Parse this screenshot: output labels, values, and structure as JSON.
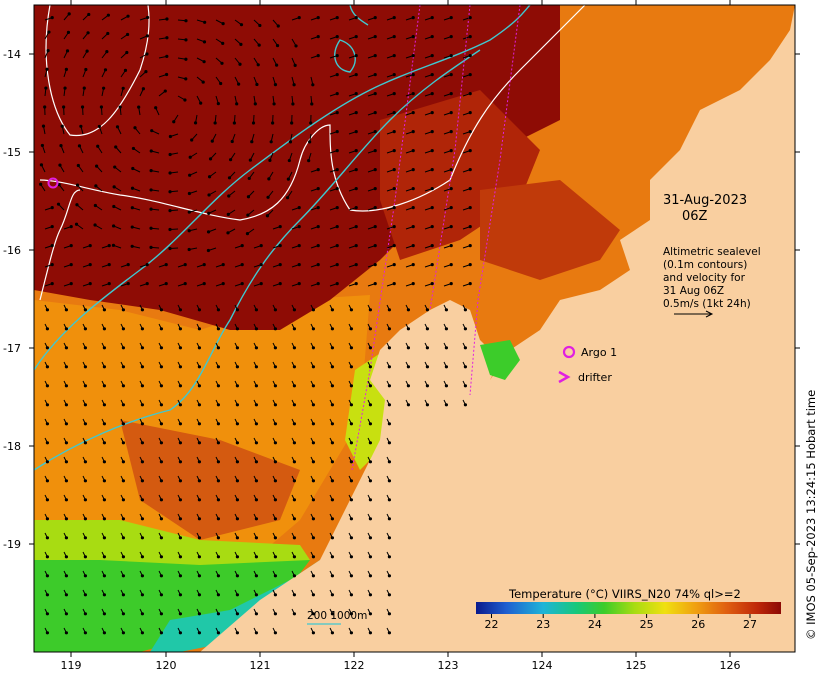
{
  "map": {
    "lat_ticks": [
      "-14",
      "-15",
      "-16",
      "-17",
      "-18",
      "-19"
    ],
    "lon_ticks": [
      "119",
      "120",
      "121",
      "122",
      "123",
      "124",
      "125",
      "126"
    ],
    "lon_range": [
      118.65,
      126.7
    ],
    "lat_range": [
      -20.1,
      -13.5
    ]
  },
  "annotation": {
    "date": "31-Aug-2023",
    "time": "06Z",
    "legend_lines": [
      "Altimetric sealevel",
      "(0.1m contours)",
      "and velocity for",
      "31 Aug 06Z",
      "0.5m/s (1kt 24h)"
    ]
  },
  "markers": {
    "argo_label": "Argo 1",
    "drifter_label": "drifter",
    "argo_color": "#e020e0",
    "drifter_color": "#e020e0"
  },
  "bathymetry": {
    "label": "200  1000m",
    "color": "#40c8d0"
  },
  "colorbar": {
    "title": "Temperature (°C) VIIRS_N20 74% ql>=2",
    "ticks": [
      "22",
      "23",
      "24",
      "25",
      "26",
      "27"
    ],
    "min": 21.7,
    "max": 27.6,
    "colors": [
      "#0a1a8c",
      "#1f5fd0",
      "#1fb4d8",
      "#18c87a",
      "#3ccc2a",
      "#a8dc12",
      "#f0e010",
      "#f0a010",
      "#e06010",
      "#c02808",
      "#8c0a05"
    ]
  },
  "credit": "© IMOS 05-Sep-2023 13:24:15 Hobart time",
  "colors": {
    "land": "#f9cfa0",
    "warm_sea": "#8e0c05",
    "contour": "#ffffff"
  }
}
